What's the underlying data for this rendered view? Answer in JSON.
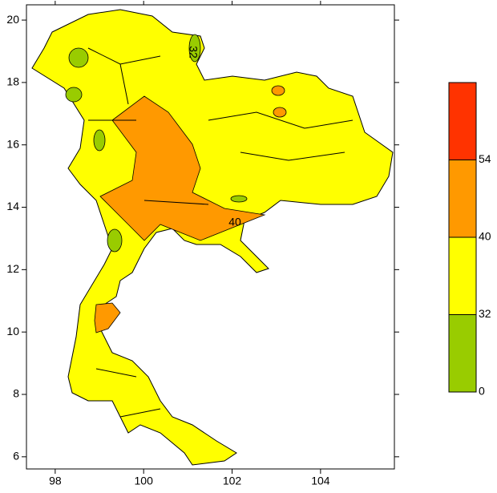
{
  "map": {
    "xlim": [
      97.35,
      105.67
    ],
    "ylim": [
      5.61,
      20.49
    ],
    "xticks": [
      98,
      100,
      102,
      104
    ],
    "yticks": [
      6,
      8,
      10,
      12,
      14,
      16,
      18,
      20
    ],
    "contour_labels": [
      "32",
      "40"
    ]
  },
  "colorbar": {
    "levels": [
      0,
      32,
      40,
      54
    ],
    "colors": [
      "#99cc00",
      "#ffff00",
      "#ff9900",
      "#ff3300"
    ]
  }
}
